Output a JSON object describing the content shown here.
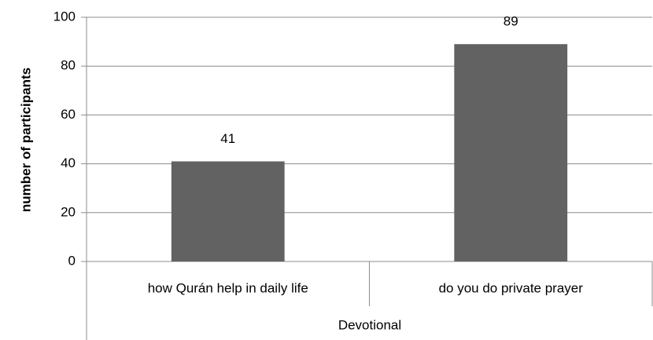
{
  "chart_data": {
    "type": "bar",
    "y_label": "number of participants",
    "group_label": "Devotional",
    "categories": [
      "how Qurán help in daily life",
      "do you do private prayer"
    ],
    "values": [
      41,
      89
    ],
    "color": "#626262",
    "ylim": [
      0,
      100
    ],
    "yticks": [
      0,
      20,
      40,
      60,
      80,
      100
    ],
    "grid": true
  }
}
